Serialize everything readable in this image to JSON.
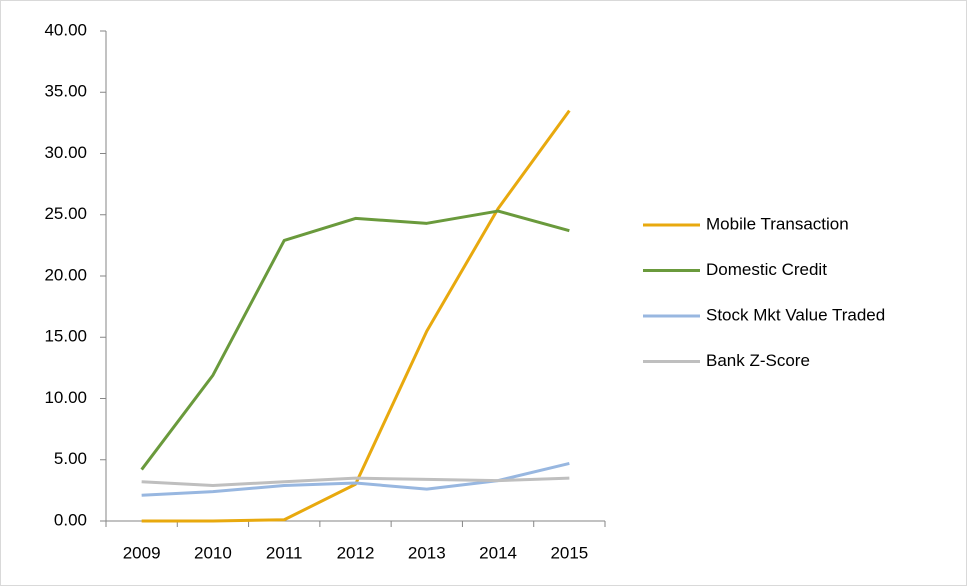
{
  "chart_data": {
    "type": "line",
    "categories": [
      "2009",
      "2010",
      "2011",
      "2012",
      "2013",
      "2014",
      "2015"
    ],
    "series": [
      {
        "name": "Mobile Transaction",
        "color": "#e8a90e",
        "values": [
          0,
          0,
          0.1,
          3,
          15.5,
          25.5,
          33.5
        ]
      },
      {
        "name": "Domestic Credit",
        "color": "#6a9a3c",
        "values": [
          4.2,
          11.9,
          22.9,
          24.7,
          24.3,
          25.3,
          23.7
        ]
      },
      {
        "name": "Stock Mkt Value Traded",
        "color": "#98b7e0",
        "values": [
          2.1,
          2.4,
          2.9,
          3.1,
          2.6,
          3.3,
          4.7
        ]
      },
      {
        "name": "Bank Z-Score",
        "color": "#bfbfbf",
        "values": [
          3.2,
          2.9,
          3.2,
          3.5,
          3.4,
          3.3,
          3.5
        ]
      }
    ],
    "ylim": [
      0,
      40
    ],
    "yticks": [
      {
        "value": 0,
        "label": "0.00"
      },
      {
        "value": 5,
        "label": "5.00"
      },
      {
        "value": 10,
        "label": "10.00"
      },
      {
        "value": 15,
        "label": "15.00"
      },
      {
        "value": 20,
        "label": "20.00"
      },
      {
        "value": 25,
        "label": "25.00"
      },
      {
        "value": 30,
        "label": "30.00"
      },
      {
        "value": 35,
        "label": "35.00"
      },
      {
        "value": 40,
        "label": "40.00"
      }
    ],
    "legend": "right"
  }
}
